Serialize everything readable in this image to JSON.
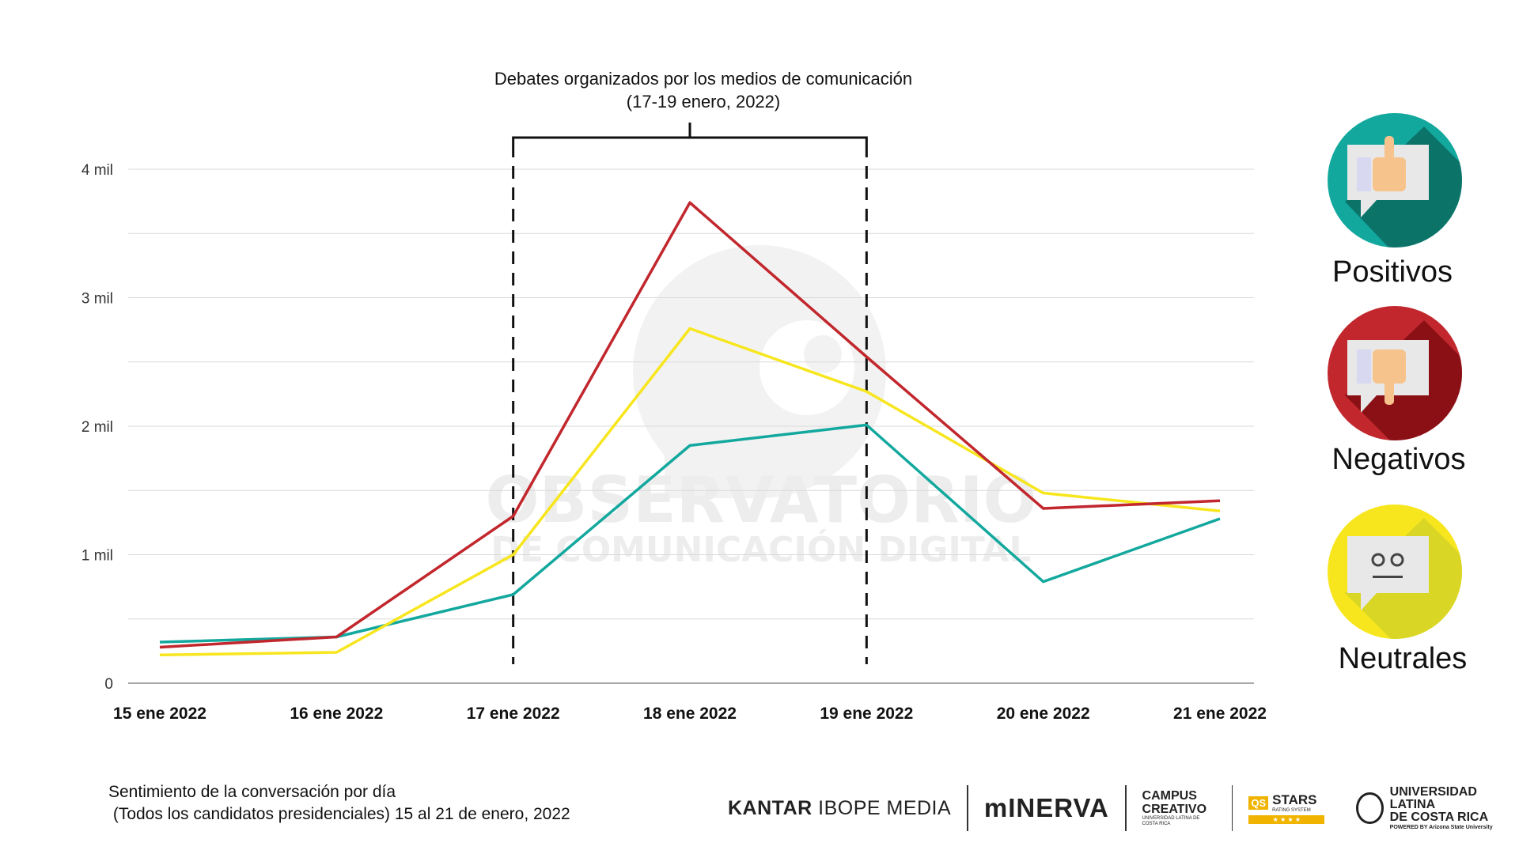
{
  "chart_data": {
    "type": "line",
    "categories": [
      "15 ene 2022",
      "16 ene 2022",
      "17 ene 2022",
      "18 ene 2022",
      "19 ene 2022",
      "20 ene 2022",
      "21 ene 2022"
    ],
    "y_ticks": [
      "0",
      "1 mil",
      "2 mil",
      "3 mil",
      "4 mil"
    ],
    "ylim": [
      0,
      4000
    ],
    "grid": true,
    "series": [
      {
        "name": "Negativos",
        "color": "#c1272d",
        "values": [
          280,
          360,
          1300,
          3740,
          2540,
          1360,
          1420
        ]
      },
      {
        "name": "Neutrales",
        "color": "#f7e61e",
        "values": [
          220,
          240,
          1000,
          2760,
          2270,
          1480,
          1340
        ]
      },
      {
        "name": "Positivos",
        "color": "#13a89e",
        "values": [
          320,
          360,
          690,
          1850,
          2010,
          790,
          1280
        ]
      }
    ],
    "annotation": {
      "line1": "Debates organizados por los medios de comunicación",
      "line2": "(17-19 enero, 2022)",
      "from_category": "17 ene 2022",
      "to_category": "19 ene 2022"
    },
    "watermark": {
      "line1": "OBSERVATORIO",
      "line2": "DE COMUNICACIÓN DIGITAL"
    }
  },
  "legend": [
    {
      "label": "Positivos",
      "icon": "thumbs-up-icon",
      "bg": "#13a89e",
      "shade": "#0c7369"
    },
    {
      "label": "Negativos",
      "icon": "thumbs-down-icon",
      "bg": "#c1272d",
      "shade": "#8b1016"
    },
    {
      "label": "Neutrales",
      "icon": "neutral-face-icon",
      "bg": "#f7e61e",
      "shade": "#d9d625"
    }
  ],
  "caption": {
    "line1": "Sentimiento de la conversación por día",
    "line2": " (Todos los candidatos presidenciales) 15 al 21 de enero, 2022"
  },
  "logos": {
    "kantar_bold": "KANTAR",
    "kantar_rest": " IBOPE MEDIA",
    "minerva": "mINERVA",
    "campus_line1": "CAMPUS",
    "campus_line2": "CREATIVO",
    "campus_sub": "UNIVERSIDAD LATINA DE COSTA RICA",
    "qs_box": "QS",
    "qs_title": "STARS",
    "qs_sub": "RATING SYSTEM",
    "qs_stars": "★ ★ ★ ★",
    "ulat_line1": "UNIVERSIDAD LATINA",
    "ulat_line2": "DE COSTA RICA",
    "ulat_sub": "POWERED BY Arizona State University"
  }
}
